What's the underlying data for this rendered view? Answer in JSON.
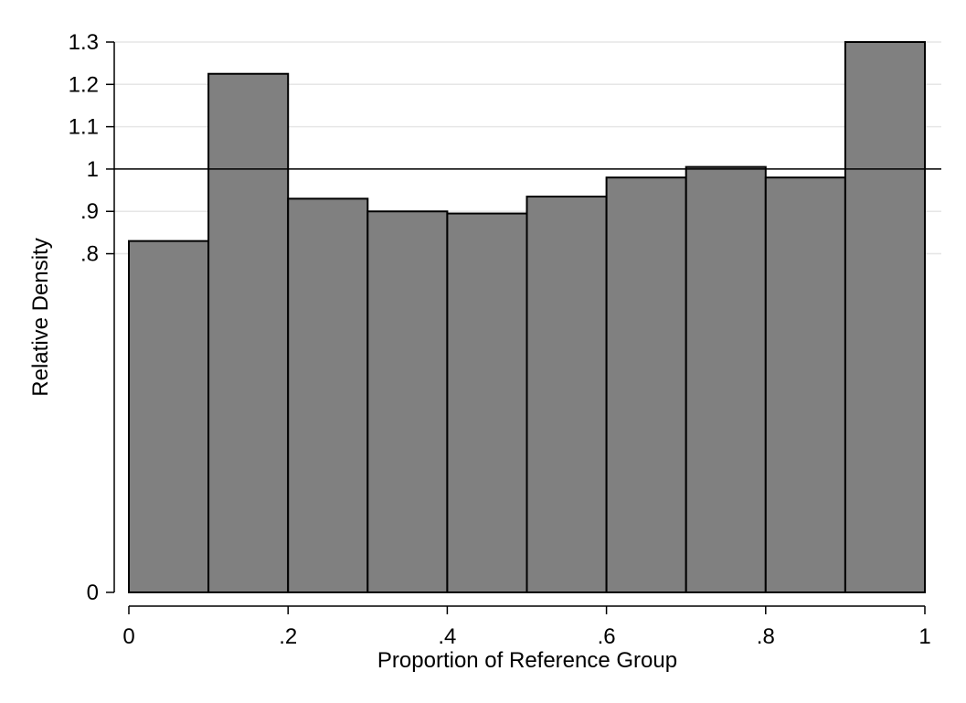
{
  "chart_data": {
    "type": "bar",
    "histogram": true,
    "bin_edges": [
      0,
      0.1,
      0.2,
      0.3,
      0.4,
      0.5,
      0.6,
      0.7,
      0.8,
      0.9,
      1.0
    ],
    "values": [
      0.83,
      1.225,
      0.93,
      0.9,
      0.895,
      0.935,
      0.98,
      1.005,
      0.98,
      1.3
    ],
    "xlabel": "Proportion of Reference Group",
    "ylabel": "Relative Density",
    "xlim": [
      0,
      1
    ],
    "ylim": [
      0,
      1.3
    ],
    "x_ticks": [
      {
        "value": 0,
        "label": "0"
      },
      {
        "value": 0.2,
        "label": ".2"
      },
      {
        "value": 0.4,
        "label": ".4"
      },
      {
        "value": 0.6,
        "label": ".6"
      },
      {
        "value": 0.8,
        "label": ".8"
      },
      {
        "value": 1.0,
        "label": "1"
      }
    ],
    "y_ticks": [
      {
        "value": 0,
        "label": "0"
      },
      {
        "value": 0.8,
        "label": ".8"
      },
      {
        "value": 0.9,
        "label": ".9"
      },
      {
        "value": 1.0,
        "label": "1"
      },
      {
        "value": 1.1,
        "label": "1.1"
      },
      {
        "value": 1.2,
        "label": "1.2"
      },
      {
        "value": 1.3,
        "label": "1.3"
      }
    ],
    "reference_line": 1,
    "grid": true,
    "bar_color": "#808080",
    "bar_edge_color": "#000000",
    "grid_color": "#e6e6e6"
  }
}
